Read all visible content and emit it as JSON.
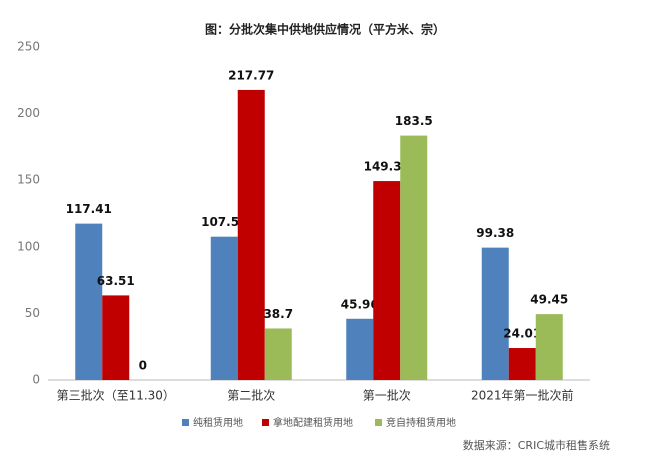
{
  "chart_data": {
    "type": "bar",
    "title": "图：分批次集中供地供应情况（平方米、宗）",
    "categories": [
      "第三批次（至11.30）",
      "第二批次",
      "第一批次",
      "2021年第一批次前"
    ],
    "series": [
      {
        "name": "纯租赁用地",
        "color": "#4f81bd",
        "values": [
          117.41,
          107.59,
          45.96,
          99.38
        ]
      },
      {
        "name": "拿地配建租赁用地",
        "color": "#c00000",
        "values": [
          63.51,
          217.77,
          149.35,
          24.01
        ]
      },
      {
        "name": "竞自持租赁用地",
        "color": "#9bbb59",
        "values": [
          0,
          38.7,
          183.5,
          49.45
        ]
      }
    ],
    "ylim": [
      0,
      250
    ],
    "yticks": [
      0,
      50,
      100,
      150,
      200,
      250
    ],
    "grid": false,
    "source": "数据来源：CRIC城市租售系统"
  }
}
